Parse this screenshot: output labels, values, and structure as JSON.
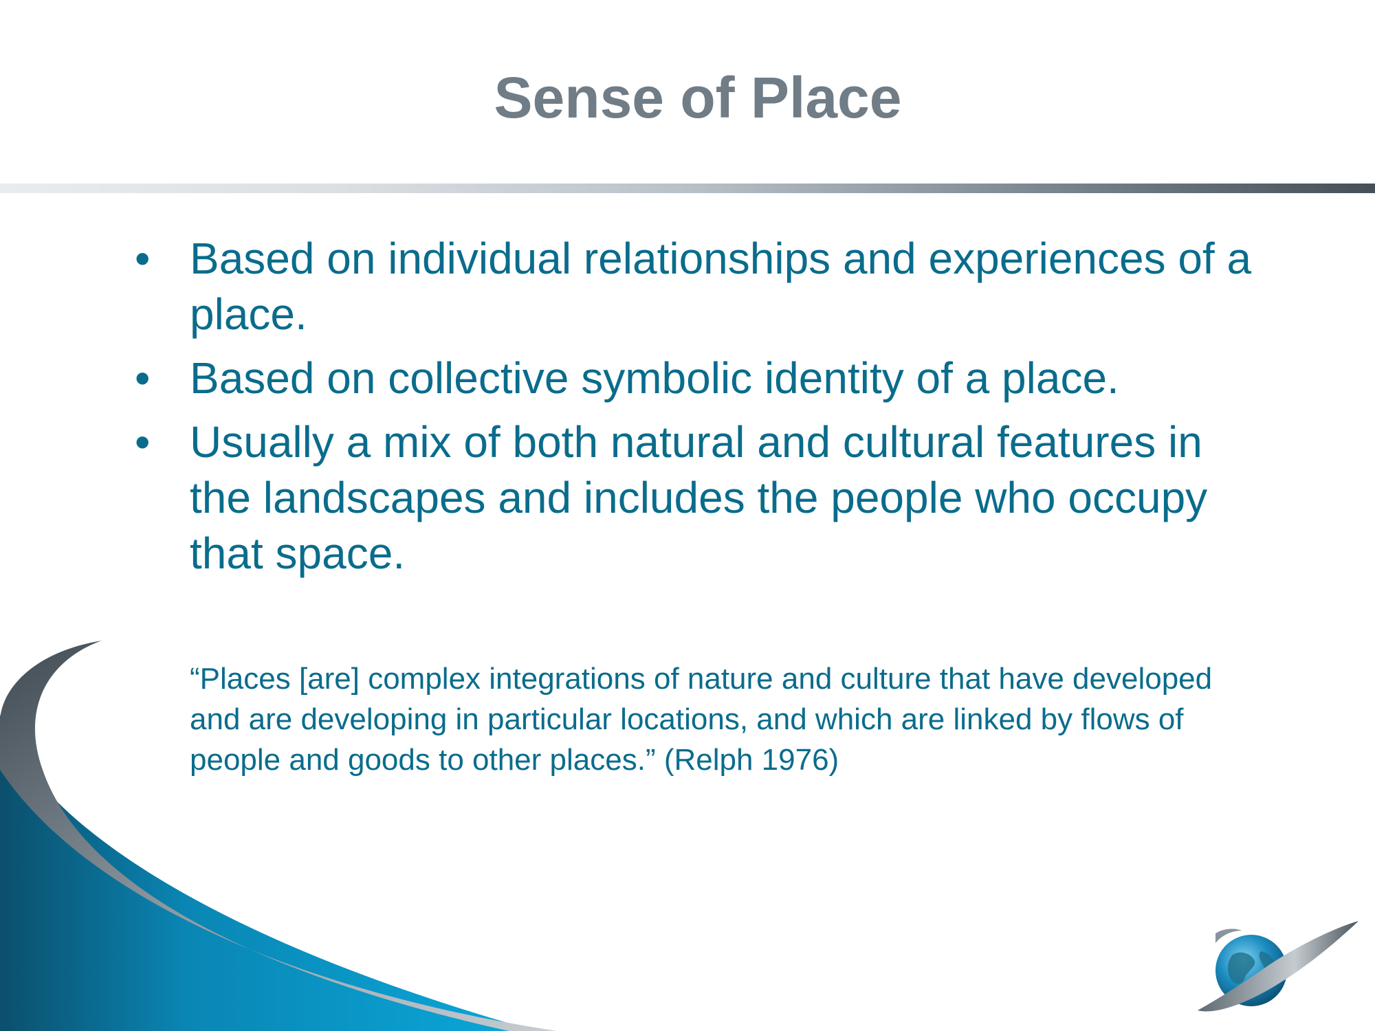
{
  "slide": {
    "title": "Sense of Place",
    "bullets": [
      {
        "marker": "•",
        "text": "Based on individual relationships and experiences of a place."
      },
      {
        "marker": "•",
        "text": "Based on collective symbolic identity of a place."
      },
      {
        "marker": "•",
        "text": "Usually a mix of both natural and cultural features in the landscapes and includes the people who occupy that space."
      }
    ],
    "quote": "“Places [are] complex integrations of nature and culture that have developed and are developing in particular locations, and which are linked by flows of people and goods to other places.” (Relph 1976)"
  },
  "colors": {
    "title": "#707c86",
    "body_text": "#0a6c8c",
    "swoosh_blue": "#0aa3d4",
    "swoosh_dark": "#0b4f6c",
    "swoosh_gray": "#8a949c"
  },
  "icons": {
    "background_swoosh": "swoosh-graphic",
    "logo": "globe-logo-icon"
  }
}
